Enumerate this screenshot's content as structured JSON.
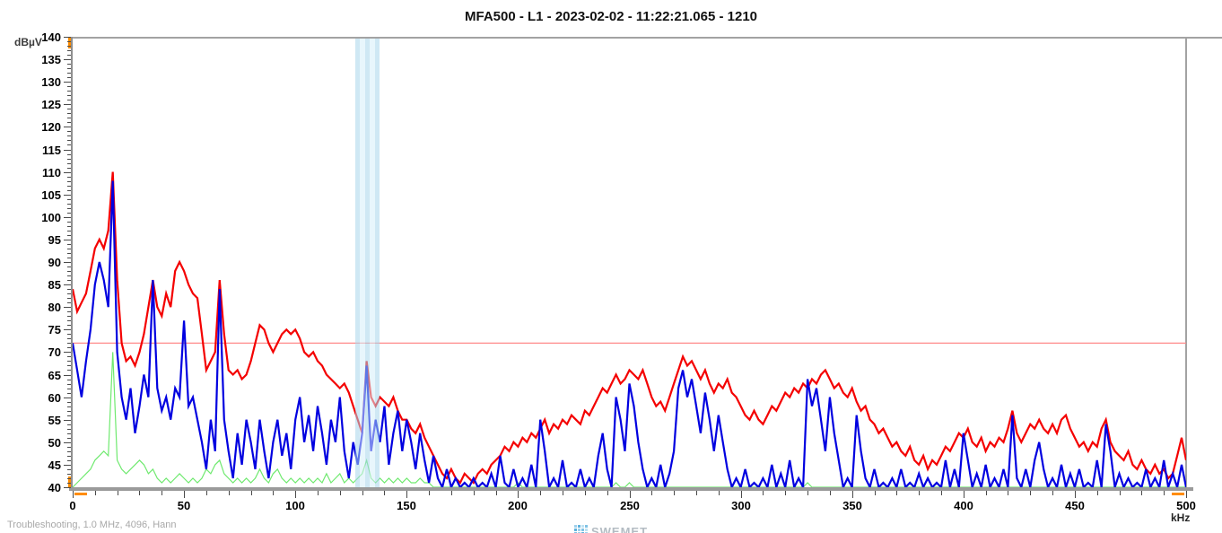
{
  "title": "MFA500 - L1 - 2023-02-02 - 11:22:21.065 - 1210",
  "footer_note": "Troubleshooting, 1.0 MHz, 4096, Hann",
  "brand": "SWEMET",
  "axes": {
    "y_unit": "dBµV",
    "x_unit": "kHz",
    "y_min": 40,
    "y_max": 140,
    "y_major": 5,
    "y_minor": 1,
    "x_min": 0,
    "x_max": 500,
    "x_major": 50,
    "x_minor": 10
  },
  "colors": {
    "max_trace": "#f40000",
    "avg_trace": "#0000e0",
    "min_trace": "#6fe96f",
    "threshold": "#ff8a8a",
    "band": "#cfe6f4",
    "axis": "#a3a3a3",
    "accent": "#ff8c00"
  },
  "threshold_dbuv": 72,
  "band_khz": {
    "start": 127,
    "end": 138
  },
  "chart_data": {
    "type": "line",
    "title": "MFA500 - L1 - 2023-02-02 - 11:22:21.065 - 1210",
    "xlabel": "kHz",
    "ylabel": "dBµV",
    "xlim": [
      0,
      500
    ],
    "ylim": [
      40,
      140
    ],
    "grid": false,
    "legend": "none",
    "annotations": [
      "threshold line at 72 dBµV",
      "highlight band 127-138 kHz"
    ],
    "x_start": 0,
    "x_step": 2,
    "series": [
      {
        "name": "max-hold",
        "color": "#f40000",
        "values": [
          84,
          79,
          81,
          83,
          88,
          93,
          95,
          93,
          97,
          110,
          86,
          72,
          68,
          69,
          67,
          70,
          74,
          80,
          86,
          80,
          78,
          83,
          80,
          88,
          90,
          88,
          85,
          83,
          82,
          74,
          66,
          68,
          70,
          86,
          74,
          66,
          65,
          66,
          64,
          65,
          68,
          72,
          76,
          75,
          72,
          70,
          72,
          74,
          75,
          74,
          75,
          73,
          70,
          69,
          70,
          68,
          67,
          65,
          64,
          63,
          62,
          63,
          61,
          58,
          55,
          52,
          68,
          60,
          58,
          60,
          59,
          58,
          60,
          57,
          55,
          55,
          53,
          52,
          54,
          51,
          49,
          47,
          45,
          43,
          42,
          44,
          42,
          41,
          43,
          42,
          41,
          43,
          44,
          43,
          45,
          46,
          47,
          49,
          48,
          50,
          49,
          51,
          50,
          52,
          51,
          53,
          55,
          52,
          54,
          53,
          55,
          54,
          56,
          55,
          54,
          57,
          56,
          58,
          60,
          62,
          61,
          63,
          65,
          63,
          64,
          66,
          65,
          64,
          66,
          63,
          60,
          58,
          59,
          57,
          60,
          63,
          66,
          69,
          67,
          68,
          66,
          64,
          66,
          63,
          61,
          63,
          62,
          64,
          61,
          60,
          58,
          56,
          55,
          57,
          55,
          54,
          56,
          58,
          57,
          59,
          61,
          60,
          62,
          61,
          63,
          62,
          64,
          63,
          65,
          66,
          64,
          62,
          63,
          61,
          60,
          62,
          59,
          57,
          58,
          55,
          54,
          52,
          53,
          51,
          49,
          50,
          48,
          47,
          49,
          46,
          45,
          47,
          44,
          46,
          45,
          47,
          49,
          48,
          50,
          52,
          51,
          53,
          50,
          49,
          51,
          48,
          50,
          49,
          51,
          50,
          53,
          57,
          52,
          50,
          52,
          54,
          53,
          55,
          53,
          52,
          54,
          52,
          55,
          56,
          53,
          51,
          49,
          50,
          48,
          50,
          49,
          53,
          55,
          50,
          48,
          47,
          46,
          48,
          45,
          44,
          46,
          44,
          43,
          45,
          43,
          44,
          42,
          43,
          47,
          51,
          46
        ]
      },
      {
        "name": "average",
        "color": "#0000e0",
        "values": [
          72,
          66,
          60,
          68,
          75,
          85,
          90,
          86,
          80,
          108,
          70,
          60,
          55,
          62,
          52,
          58,
          65,
          60,
          86,
          62,
          57,
          60,
          55,
          62,
          60,
          77,
          58,
          60,
          55,
          50,
          44,
          55,
          48,
          84,
          55,
          48,
          42,
          52,
          45,
          55,
          50,
          44,
          55,
          48,
          42,
          50,
          55,
          47,
          52,
          44,
          55,
          60,
          50,
          56,
          48,
          58,
          52,
          45,
          55,
          50,
          60,
          48,
          42,
          50,
          45,
          52,
          67,
          48,
          55,
          50,
          58,
          45,
          52,
          57,
          48,
          55,
          50,
          44,
          52,
          46,
          41,
          47,
          42,
          40,
          44,
          40,
          42,
          40,
          41,
          40,
          42,
          40,
          41,
          40,
          43,
          40,
          47,
          41,
          40,
          44,
          40,
          42,
          40,
          45,
          40,
          55,
          48,
          40,
          42,
          40,
          46,
          40,
          41,
          40,
          44,
          40,
          42,
          40,
          47,
          52,
          44,
          40,
          60,
          55,
          48,
          63,
          58,
          50,
          44,
          40,
          42,
          40,
          45,
          40,
          43,
          48,
          62,
          66,
          60,
          64,
          58,
          52,
          61,
          55,
          48,
          56,
          50,
          44,
          40,
          42,
          40,
          44,
          40,
          41,
          40,
          42,
          40,
          45,
          40,
          43,
          40,
          46,
          40,
          42,
          40,
          64,
          58,
          62,
          55,
          48,
          60,
          52,
          46,
          40,
          42,
          40,
          56,
          48,
          42,
          40,
          44,
          40,
          41,
          40,
          42,
          40,
          44,
          40,
          41,
          40,
          43,
          40,
          42,
          40,
          41,
          40,
          46,
          40,
          44,
          40,
          52,
          46,
          40,
          43,
          40,
          45,
          40,
          42,
          40,
          44,
          40,
          56,
          42,
          40,
          44,
          40,
          46,
          50,
          44,
          40,
          42,
          40,
          45,
          40,
          43,
          40,
          44,
          40,
          41,
          40,
          46,
          40,
          54,
          48,
          40,
          43,
          40,
          42,
          40,
          41,
          40,
          44,
          40,
          42,
          40,
          46,
          40,
          43,
          40,
          45,
          40
        ]
      },
      {
        "name": "min-hold",
        "color": "#6fe96f",
        "values": [
          40,
          41,
          42,
          43,
          44,
          46,
          47,
          48,
          47,
          70,
          46,
          44,
          43,
          44,
          45,
          46,
          45,
          43,
          44,
          42,
          41,
          42,
          41,
          42,
          43,
          42,
          41,
          42,
          41,
          42,
          44,
          43,
          45,
          46,
          43,
          42,
          41,
          42,
          41,
          42,
          41,
          42,
          44,
          42,
          41,
          43,
          44,
          42,
          41,
          42,
          41,
          42,
          41,
          42,
          41,
          42,
          41,
          43,
          41,
          42,
          43,
          41,
          42,
          41,
          42,
          43,
          46,
          42,
          41,
          42,
          41,
          42,
          41,
          42,
          41,
          42,
          41,
          41,
          42,
          41,
          41,
          40,
          40,
          40,
          40,
          40,
          40,
          40,
          40,
          40,
          40,
          40,
          40,
          40,
          40,
          40,
          40,
          40,
          40,
          40,
          41,
          40,
          40,
          40,
          40,
          40,
          40,
          40,
          40,
          40,
          40,
          40,
          40,
          40,
          40,
          40,
          40,
          40,
          40,
          40,
          40,
          40,
          41,
          40,
          40,
          41,
          40,
          40,
          40,
          40,
          40,
          40,
          40,
          40,
          40,
          40,
          40,
          40,
          40,
          40,
          40,
          40,
          40,
          40,
          40,
          40,
          40,
          40,
          40,
          40,
          40,
          40,
          40,
          40,
          40,
          40,
          40,
          40,
          40,
          40,
          40,
          40,
          40,
          40,
          40,
          41,
          40,
          40,
          40,
          40,
          40,
          40,
          40,
          40,
          40,
          40,
          40,
          40,
          40,
          40,
          40,
          40,
          40,
          40,
          40,
          40,
          40,
          40,
          40,
          40,
          40,
          40,
          40,
          40,
          40,
          40,
          40,
          40,
          40,
          40,
          40,
          40,
          40,
          40,
          40,
          40,
          40,
          40,
          40,
          40,
          40,
          40,
          40,
          40,
          40,
          40,
          40,
          40,
          40,
          40,
          40,
          40,
          40,
          40,
          40,
          40,
          40,
          40,
          40,
          40,
          40,
          40,
          40,
          40,
          40,
          40,
          40,
          40,
          40,
          40,
          40,
          40,
          40,
          40,
          40,
          40,
          40,
          40,
          40,
          40,
          40
        ]
      }
    ]
  }
}
